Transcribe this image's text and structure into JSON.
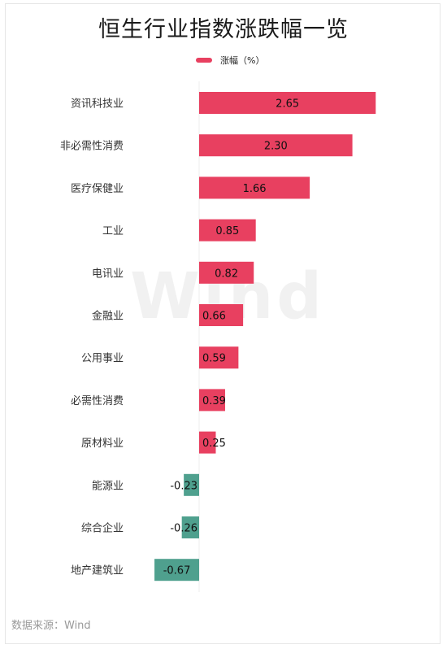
{
  "title": "恒生行业指数涨跌幅一览",
  "source": "数据来源：Wind",
  "watermark": "Wind",
  "colors": {
    "positive": "#e84060",
    "negative": "#4fa08e"
  },
  "chart_data": {
    "type": "bar",
    "orientation": "horizontal",
    "title": "恒生行业指数涨跌幅一览",
    "categories": [
      "资讯科技业",
      "非必需性消费",
      "医疗保健业",
      "工业",
      "电讯业",
      "金融业",
      "公用事业",
      "必需性消费",
      "原材料业",
      "能源业",
      "综合企业",
      "地产建筑业"
    ],
    "series": [
      {
        "name": "涨幅（%）",
        "values": [
          2.65,
          2.3,
          1.66,
          0.85,
          0.82,
          0.66,
          0.59,
          0.39,
          0.25,
          -0.23,
          -0.26,
          -0.67
        ]
      }
    ],
    "value_labels": [
      "2.65",
      "2.30",
      "1.66",
      "0.85",
      "0.82",
      "0.66",
      "0.59",
      "0.39",
      "0.25",
      "-0.23",
      "-0.26",
      "-0.67"
    ],
    "legend_position": "top",
    "grid": false
  }
}
